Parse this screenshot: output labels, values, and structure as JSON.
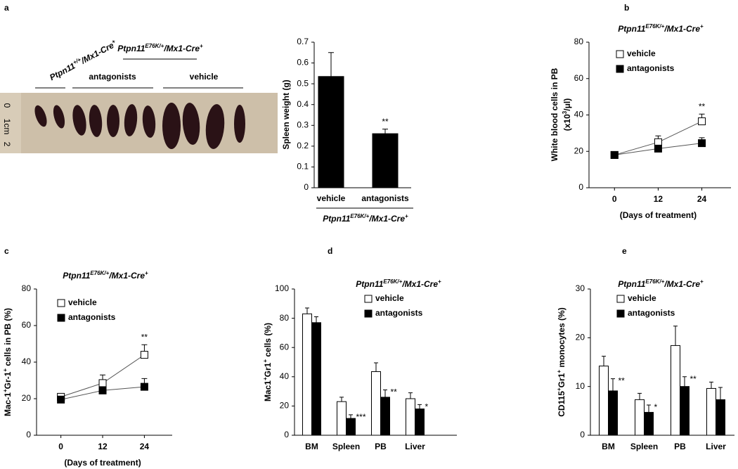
{
  "panel_labels": [
    "a",
    "b",
    "c",
    "d",
    "e"
  ],
  "photo": {
    "control_label": [
      "Ptpn11",
      "+/+",
      "/Mx1-Cre",
      "+"
    ],
    "mutant_label": [
      "Ptpn11",
      "E76K/+",
      "/Mx1-Cre",
      "+"
    ],
    "group_labels": [
      "antagonists",
      "vehicle"
    ],
    "ruler": [
      "0",
      "1cm",
      "2"
    ]
  },
  "chart_data": [
    {
      "type": "bar",
      "categories": [
        "vehicle",
        "antagonists"
      ],
      "values": [
        0.535,
        0.26
      ],
      "errors": [
        0.115,
        0.022
      ],
      "color": "#000000",
      "annotations": [
        null,
        "**"
      ],
      "ylabel": [
        [
          "Spleen weight (g)"
        ]
      ],
      "group_label": [
        "Ptpn11",
        "E76K/+",
        "/Mx1-Cre",
        "+"
      ],
      "ylim": [
        0,
        0.7
      ],
      "yticks": [
        0,
        0.1,
        0.2,
        0.3,
        0.4,
        0.5,
        0.6,
        0.7
      ]
    },
    {
      "type": "line",
      "title": [
        "Ptpn11",
        "E76K/+",
        "/Mx1-Cre",
        "+"
      ],
      "x": [
        0,
        12,
        24
      ],
      "xlim": [
        -7,
        32
      ],
      "xticks": [
        0,
        12,
        24
      ],
      "xlabel": "(Days of treatment)",
      "ylabel": [
        [
          "White blood cells in PB"
        ],
        [
          "(x10",
          "3",
          "/μl)"
        ]
      ],
      "series": [
        {
          "name": "vehicle",
          "color": "#ffffff",
          "values": [
            18,
            25,
            36.5
          ],
          "errors": [
            1.5,
            3.5,
            4
          ]
        },
        {
          "name": "antagonists",
          "color": "#000000",
          "values": [
            18,
            21.5,
            24.5
          ],
          "errors": [
            1,
            1.5,
            3
          ]
        }
      ],
      "annotations": [
        null,
        null,
        "**"
      ],
      "ylim": [
        0,
        80
      ],
      "yticks": [
        0,
        20,
        40,
        60,
        80
      ]
    },
    {
      "type": "line",
      "title": [
        "Ptpn11",
        "E76K/+",
        "/Mx1-Cre",
        "+"
      ],
      "x": [
        0,
        12,
        24
      ],
      "xlim": [
        -7,
        32
      ],
      "xticks": [
        0,
        12,
        24
      ],
      "xlabel": "(Days of treatment)",
      "ylabel": [
        [
          "Mac-1",
          "+",
          "Gr-1",
          "+",
          " cells in PB (%)"
        ]
      ],
      "series": [
        {
          "name": "vehicle",
          "color": "#ffffff",
          "values": [
            21,
            28.5,
            44
          ],
          "errors": [
            1.5,
            4.5,
            5.5
          ]
        },
        {
          "name": "antagonists",
          "color": "#000000",
          "values": [
            19.5,
            24.5,
            26.5
          ],
          "errors": [
            1,
            1.5,
            4.5
          ]
        }
      ],
      "annotations": [
        null,
        null,
        "**"
      ],
      "ylim": [
        0,
        80
      ],
      "yticks": [
        0,
        20,
        40,
        60,
        80
      ]
    },
    {
      "type": "grouped_bar",
      "title": [
        "Ptpn11",
        "E76K/+",
        "/Mx1-Cre",
        "+"
      ],
      "categories": [
        "BM",
        "Spleen",
        "PB",
        "Liver"
      ],
      "ylabel": [
        [
          "Mac1",
          "+",
          "Gr1",
          "+",
          " cells (%)"
        ]
      ],
      "series": [
        {
          "name": "vehicle",
          "color": "#ffffff",
          "values": [
            83,
            23,
            43.5,
            25
          ],
          "errors": [
            4,
            3,
            6,
            4
          ]
        },
        {
          "name": "antagonists",
          "color": "#000000",
          "values": [
            77,
            11.5,
            26,
            18
          ],
          "errors": [
            4,
            2.5,
            5,
            3
          ]
        }
      ],
      "annotations": [
        null,
        "***",
        "**",
        "*"
      ],
      "ylim": [
        0,
        100
      ],
      "yticks": [
        0,
        20,
        40,
        60,
        80,
        100
      ]
    },
    {
      "type": "grouped_bar",
      "title": [
        "Ptpn11",
        "E76K/+",
        "/Mx1-Cre",
        "+"
      ],
      "categories": [
        "BM",
        "Spleen",
        "PB",
        "Liver"
      ],
      "ylabel": [
        [
          "CD115",
          "+",
          "Gr1",
          "+",
          " monocytes (%)"
        ]
      ],
      "series": [
        {
          "name": "vehicle",
          "color": "#ffffff",
          "values": [
            14.2,
            7.3,
            18.4,
            9.6
          ],
          "errors": [
            2,
            1.3,
            4,
            1.3
          ]
        },
        {
          "name": "antagonists",
          "color": "#000000",
          "values": [
            9.1,
            4.7,
            10,
            7.3
          ],
          "errors": [
            2.5,
            1.5,
            2,
            2.5
          ]
        }
      ],
      "annotations": [
        "**",
        "*",
        "**",
        null
      ],
      "ylim": [
        0,
        30
      ],
      "yticks": [
        0,
        10,
        20,
        30
      ]
    }
  ]
}
